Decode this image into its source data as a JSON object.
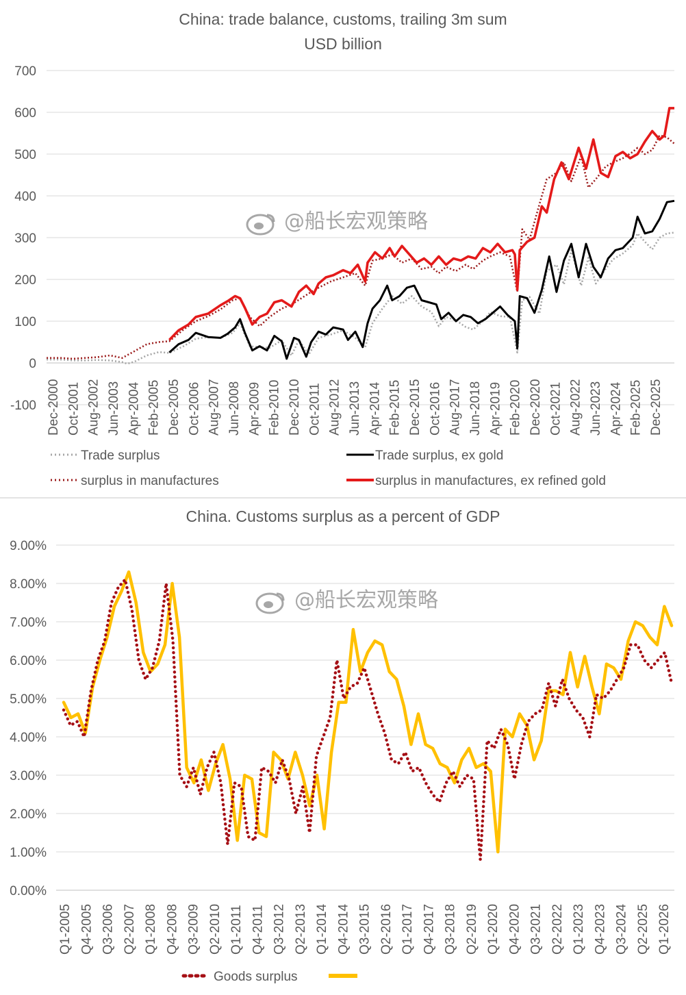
{
  "watermark": "@船长宏观策略",
  "chart_data": [
    {
      "type": "line",
      "title": "China: trade balance, customs, trailing 3m sum",
      "subtitle": "USD billion",
      "ylim": [
        -100,
        700
      ],
      "yticks": [
        "700",
        "600",
        "500",
        "400",
        "300",
        "200",
        "100",
        "0",
        "-100"
      ],
      "ytick_values": [
        700,
        600,
        500,
        400,
        300,
        200,
        100,
        0,
        -100
      ],
      "xlim": [
        2000.917,
        2026.5
      ],
      "xticks": [
        "Dec-2000",
        "Oct-2001",
        "Aug-2002",
        "Jun-2003",
        "Apr-2004",
        "Feb-2005",
        "Dec-2005",
        "Oct-2006",
        "Aug-2007",
        "Jun-2008",
        "Apr-2009",
        "Feb-2010",
        "Dec-2010",
        "Oct-2011",
        "Aug-2012",
        "Jun-2013",
        "Apr-2014",
        "Feb-2015",
        "Dec-2015",
        "Oct-2016",
        "Aug-2017",
        "Jun-2018",
        "Apr-2019",
        "Feb-2020",
        "Dec-2020",
        "Oct-2021",
        "Aug-2022",
        "Jun-2023",
        "Apr-2024",
        "Feb-2025",
        "Dec-2025"
      ],
      "grid": true,
      "legend_position": "bottom",
      "series": [
        {
          "name": "Trade surplus",
          "style": "dotted",
          "color": "#a6a6a6",
          "x": [
            2000.92,
            2001.5,
            2002.0,
            2002.5,
            2003.0,
            2003.5,
            2004.0,
            2004.2,
            2004.5,
            2005.0,
            2005.5,
            2005.92,
            2006.5,
            2007.0,
            2007.5,
            2008.0,
            2008.5,
            2008.8,
            2009.2,
            2009.6,
            2010.0,
            2010.5,
            2010.9,
            2011.2,
            2011.6,
            2012.0,
            2012.5,
            2013.0,
            2013.5,
            2013.9,
            2014.2,
            2014.6,
            2015.0,
            2015.4,
            2015.8,
            2016.2,
            2016.6,
            2016.9,
            2017.2,
            2017.6,
            2018.0,
            2018.3,
            2018.7,
            2019.0,
            2019.4,
            2019.8,
            2020.1,
            2020.3,
            2020.6,
            2021.0,
            2021.3,
            2021.7,
            2022.0,
            2022.3,
            2022.7,
            2023.0,
            2023.3,
            2023.7,
            2024.0,
            2024.4,
            2024.8,
            2025.0,
            2025.3,
            2025.6,
            2025.9,
            2026.2,
            2026.5
          ],
          "y": [
            8,
            8,
            6,
            6,
            7,
            6,
            2,
            -2,
            3,
            18,
            26,
            24,
            40,
            58,
            62,
            60,
            72,
            95,
            40,
            38,
            36,
            54,
            18,
            55,
            20,
            60,
            68,
            78,
            60,
            38,
            95,
            130,
            160,
            142,
            160,
            135,
            122,
            88,
            110,
            102,
            86,
            80,
            100,
            122,
            112,
            110,
            25,
            150,
            158,
            118,
            220,
            235,
            188,
            270,
            185,
            252,
            190,
            225,
            248,
            262,
            282,
            310,
            290,
            272,
            300,
            310,
            312
          ]
        },
        {
          "name": "Trade surplus, ex gold",
          "style": "solid",
          "color": "#000000",
          "x": [
            2005.92,
            2006.3,
            2006.7,
            2007.0,
            2007.5,
            2008.0,
            2008.3,
            2008.6,
            2008.8,
            2009.0,
            2009.3,
            2009.6,
            2009.9,
            2010.2,
            2010.5,
            2010.7,
            2011.0,
            2011.2,
            2011.5,
            2011.7,
            2012.0,
            2012.3,
            2012.6,
            2013.0,
            2013.2,
            2013.5,
            2013.8,
            2014.0,
            2014.2,
            2014.5,
            2014.8,
            2015.0,
            2015.3,
            2015.6,
            2015.9,
            2016.2,
            2016.5,
            2016.8,
            2017.0,
            2017.3,
            2017.6,
            2017.9,
            2018.2,
            2018.5,
            2018.8,
            2019.1,
            2019.4,
            2019.7,
            2020.0,
            2020.1,
            2020.2,
            2020.5,
            2020.8,
            2021.1,
            2021.4,
            2021.7,
            2022.0,
            2022.3,
            2022.6,
            2022.9,
            2023.2,
            2023.5,
            2023.8,
            2024.1,
            2024.4,
            2024.8,
            2025.0,
            2025.3,
            2025.6,
            2025.9,
            2026.2,
            2026.5
          ],
          "y": [
            25,
            45,
            55,
            72,
            62,
            60,
            70,
            85,
            105,
            72,
            30,
            40,
            30,
            65,
            52,
            10,
            60,
            55,
            15,
            50,
            75,
            68,
            85,
            80,
            55,
            75,
            38,
            95,
            130,
            150,
            185,
            150,
            160,
            180,
            185,
            150,
            145,
            140,
            105,
            120,
            100,
            115,
            110,
            95,
            105,
            120,
            135,
            115,
            100,
            35,
            160,
            155,
            120,
            175,
            255,
            170,
            245,
            285,
            205,
            285,
            230,
            205,
            250,
            270,
            275,
            300,
            350,
            310,
            315,
            345,
            385,
            388
          ]
        },
        {
          "name": "surplus in manufactures",
          "style": "dotted",
          "color": "#9b1b1b",
          "x": [
            2000.92,
            2001.5,
            2002.0,
            2002.5,
            2003.0,
            2003.5,
            2004.0,
            2004.5,
            2005.0,
            2005.5,
            2005.92,
            2006.5,
            2007.0,
            2007.5,
            2008.0,
            2008.5,
            2008.8,
            2009.2,
            2009.6,
            2010.0,
            2010.5,
            2010.9,
            2011.3,
            2011.7,
            2012.0,
            2012.5,
            2013.0,
            2013.5,
            2013.9,
            2014.2,
            2014.6,
            2015.0,
            2015.4,
            2015.8,
            2016.2,
            2016.6,
            2016.9,
            2017.2,
            2017.6,
            2018.0,
            2018.3,
            2018.7,
            2019.0,
            2019.4,
            2019.8,
            2020.1,
            2020.3,
            2020.6,
            2021.0,
            2021.3,
            2021.7,
            2022.0,
            2022.3,
            2022.7,
            2023.0,
            2023.3,
            2023.7,
            2024.0,
            2024.4,
            2024.8,
            2025.0,
            2025.3,
            2025.6,
            2025.9,
            2026.2,
            2026.5
          ],
          "y": [
            12,
            12,
            10,
            12,
            14,
            18,
            12,
            28,
            45,
            50,
            52,
            80,
            100,
            112,
            128,
            150,
            155,
            110,
            88,
            110,
            130,
            140,
            155,
            170,
            180,
            195,
            205,
            215,
            185,
            245,
            250,
            260,
            240,
            250,
            225,
            230,
            215,
            230,
            220,
            235,
            225,
            245,
            255,
            265,
            255,
            170,
            320,
            295,
            380,
            440,
            455,
            480,
            435,
            495,
            420,
            440,
            470,
            480,
            490,
            505,
            515,
            500,
            510,
            545,
            540,
            525
          ]
        },
        {
          "name": "surplus in manufactures, ex refined gold",
          "style": "solid",
          "color": "#e41a1a",
          "x": [
            2005.92,
            2006.3,
            2006.7,
            2007.0,
            2007.5,
            2008.0,
            2008.3,
            2008.6,
            2008.8,
            2009.0,
            2009.3,
            2009.6,
            2009.9,
            2010.2,
            2010.5,
            2010.9,
            2011.2,
            2011.5,
            2011.8,
            2012.0,
            2012.3,
            2012.6,
            2013.0,
            2013.3,
            2013.6,
            2013.9,
            2014.0,
            2014.3,
            2014.6,
            2014.9,
            2015.1,
            2015.4,
            2015.7,
            2016.0,
            2016.3,
            2016.6,
            2016.9,
            2017.2,
            2017.5,
            2017.8,
            2018.1,
            2018.4,
            2018.7,
            2019.0,
            2019.3,
            2019.6,
            2019.9,
            2020.0,
            2020.1,
            2020.2,
            2020.5,
            2020.8,
            2021.1,
            2021.3,
            2021.6,
            2021.9,
            2022.2,
            2022.6,
            2022.9,
            2023.2,
            2023.5,
            2023.8,
            2024.1,
            2024.4,
            2024.7,
            2025.0,
            2025.3,
            2025.6,
            2025.9,
            2026.1,
            2026.3,
            2026.5
          ],
          "y": [
            55,
            78,
            92,
            110,
            118,
            138,
            148,
            160,
            155,
            132,
            92,
            110,
            118,
            145,
            150,
            135,
            170,
            185,
            165,
            190,
            205,
            210,
            222,
            215,
            235,
            195,
            240,
            265,
            250,
            275,
            255,
            280,
            260,
            240,
            250,
            235,
            255,
            235,
            250,
            245,
            255,
            250,
            275,
            265,
            285,
            265,
            270,
            260,
            175,
            270,
            290,
            300,
            375,
            360,
            440,
            480,
            440,
            515,
            465,
            535,
            455,
            445,
            495,
            505,
            490,
            500,
            530,
            555,
            535,
            545,
            610,
            610
          ]
        }
      ]
    },
    {
      "type": "line",
      "title": "China.  Customs surplus as a percent of GDP",
      "ylim": [
        0,
        0.09
      ],
      "yticks": [
        "9.00%",
        "8.00%",
        "7.00%",
        "6.00%",
        "5.00%",
        "4.00%",
        "3.00%",
        "2.00%",
        "1.00%",
        "0.00%"
      ],
      "ytick_values": [
        0.09,
        0.08,
        0.07,
        0.06,
        0.05,
        0.04,
        0.03,
        0.02,
        0.01,
        0.0
      ],
      "xticks": [
        "Q1-2005",
        "Q4-2005",
        "Q3-2006",
        "Q2-2007",
        "Q1-2008",
        "Q4-2008",
        "Q3-2009",
        "Q2-2010",
        "Q1-2011",
        "Q4-2011",
        "Q3-2012",
        "Q2-2013",
        "Q1-2014",
        "Q4-2014",
        "Q3-2015",
        "Q2-2016",
        "Q1-2017",
        "Q4-2017",
        "Q3-2018",
        "Q2-2019",
        "Q1-2020",
        "Q4-2020",
        "Q3-2021",
        "Q2-2022",
        "Q1-2023",
        "Q4-2023",
        "Q3-2024",
        "Q2-2025",
        "Q1-2026"
      ],
      "grid": true,
      "legend_position": "bottom",
      "series": [
        {
          "name": "Goods surplus",
          "style": "dotted",
          "color": "#a50f15",
          "y": [
            0.047,
            0.043,
            0.044,
            0.04,
            0.052,
            0.06,
            0.065,
            0.075,
            0.079,
            0.081,
            0.073,
            0.06,
            0.055,
            0.058,
            0.065,
            0.08,
            0.065,
            0.03,
            0.027,
            0.032,
            0.025,
            0.032,
            0.036,
            0.028,
            0.012,
            0.028,
            0.027,
            0.014,
            0.013,
            0.032,
            0.031,
            0.028,
            0.034,
            0.029,
            0.02,
            0.027,
            0.015,
            0.035,
            0.04,
            0.045,
            0.06,
            0.05,
            0.053,
            0.054,
            0.058,
            0.052,
            0.046,
            0.041,
            0.034,
            0.033,
            0.036,
            0.031,
            0.032,
            0.028,
            0.025,
            0.023,
            0.028,
            0.031,
            0.027,
            0.03,
            0.029,
            0.008,
            0.039,
            0.037,
            0.042,
            0.038,
            0.029,
            0.038,
            0.044,
            0.046,
            0.047,
            0.054,
            0.048,
            0.055,
            0.05,
            0.047,
            0.045,
            0.04,
            0.051,
            0.05,
            0.052,
            0.055,
            0.058,
            0.064,
            0.064,
            0.06,
            0.058,
            0.06,
            0.062,
            0.054
          ]
        },
        {
          "name": "",
          "style": "solid",
          "color": "#ffc000",
          "y": [
            0.049,
            0.045,
            0.046,
            0.041,
            0.053,
            0.06,
            0.066,
            0.074,
            0.078,
            0.083,
            0.075,
            0.062,
            0.057,
            0.059,
            0.064,
            0.08,
            0.066,
            0.032,
            0.028,
            0.034,
            0.026,
            0.033,
            0.038,
            0.029,
            0.013,
            0.03,
            0.029,
            0.015,
            0.014,
            0.036,
            0.034,
            0.029,
            0.036,
            0.03,
            0.022,
            0.03,
            0.016,
            0.036,
            0.049,
            0.049,
            0.068,
            0.057,
            0.062,
            0.065,
            0.064,
            0.057,
            0.055,
            0.048,
            0.038,
            0.046,
            0.038,
            0.037,
            0.033,
            0.032,
            0.028,
            0.034,
            0.037,
            0.032,
            0.033,
            0.031,
            0.01,
            0.042,
            0.04,
            0.046,
            0.043,
            0.034,
            0.039,
            0.052,
            0.052,
            0.051,
            0.062,
            0.053,
            0.061,
            0.053,
            0.046,
            0.059,
            0.058,
            0.055,
            0.065,
            0.07,
            0.069,
            0.066,
            0.064,
            0.074,
            0.069
          ]
        }
      ]
    }
  ]
}
